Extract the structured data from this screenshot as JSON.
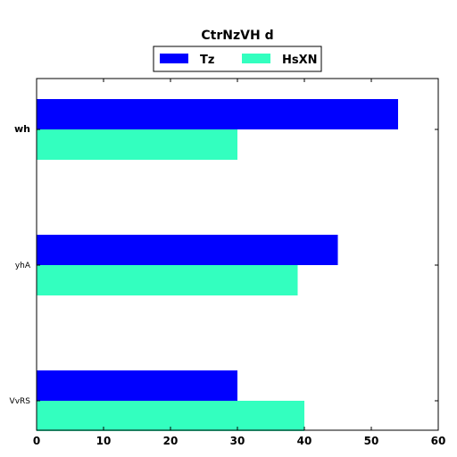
{
  "chart_data": {
    "type": "bar",
    "orientation": "horizontal",
    "title": "CtrNzVH  d",
    "categories": [
      "wh",
      "yhA",
      "VvRS"
    ],
    "series": [
      {
        "name": "Tz",
        "values": [
          54,
          45,
          30
        ],
        "color": "#0000ff"
      },
      {
        "name": "HsXN",
        "values": [
          30,
          39,
          40
        ],
        "color": "#33ffbf"
      }
    ],
    "xlim": [
      0,
      60
    ],
    "xticks": [
      0,
      10,
      20,
      30,
      40,
      50,
      60
    ],
    "xlabel": "",
    "ylabel": "",
    "grid": false,
    "legend_placement": "top-center"
  }
}
